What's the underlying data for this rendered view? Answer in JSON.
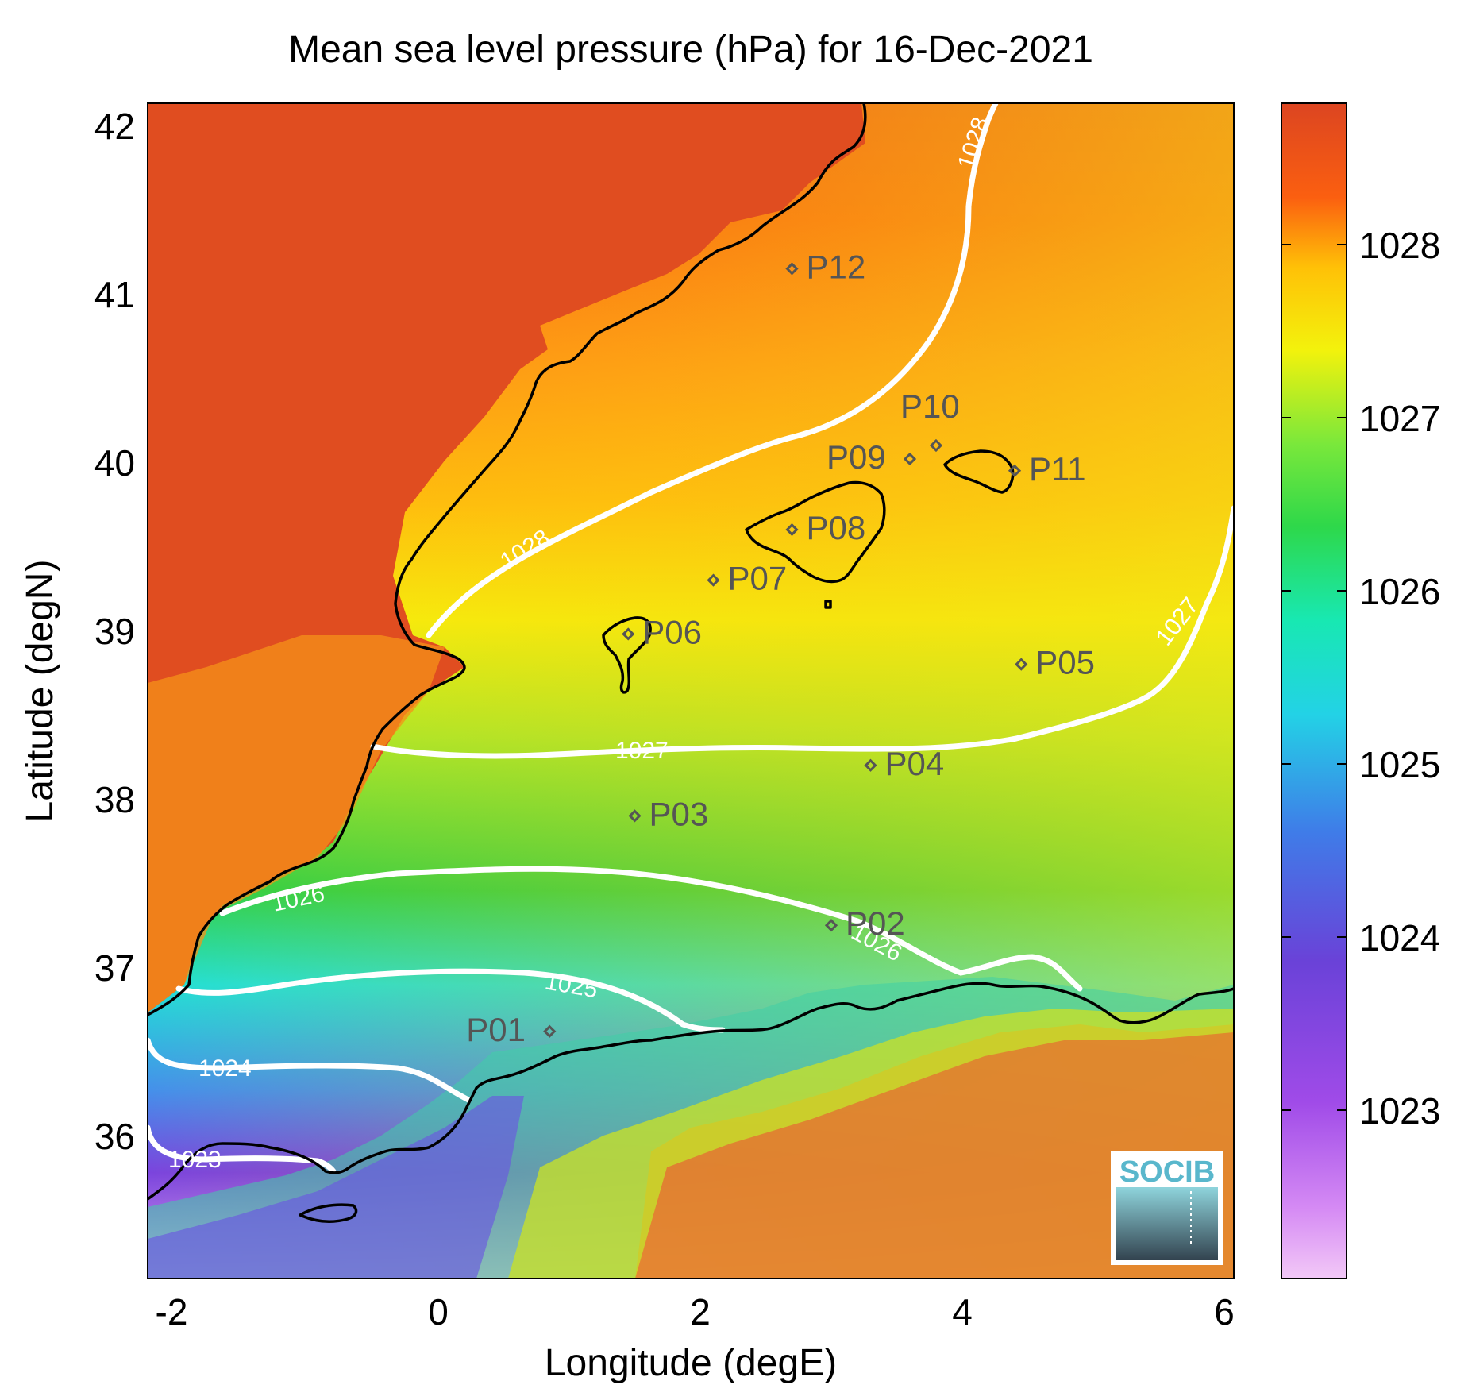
{
  "title": "Mean sea level pressure (hPa) for 16-Dec-2021",
  "xlabel": "Longitude (degE)",
  "ylabel": "Latitude (degN)",
  "xticks": [
    "-2",
    "0",
    "2",
    "4",
    "6"
  ],
  "yticks": [
    "36",
    "37",
    "38",
    "39",
    "40",
    "41",
    "42"
  ],
  "colorbar": {
    "ticks": [
      "1023",
      "1024",
      "1025",
      "1026",
      "1027",
      "1028"
    ],
    "range": [
      1022,
      1028.8
    ]
  },
  "contour_labels": [
    "1028",
    "1028",
    "1027",
    "1027",
    "1026",
    "1026",
    "1025",
    "1024",
    "1023"
  ],
  "stations": [
    {
      "id": "P01",
      "lon": 0.85,
      "lat": 36.52
    },
    {
      "id": "P02",
      "lon": 3.0,
      "lat": 37.15
    },
    {
      "id": "P03",
      "lon": 1.5,
      "lat": 37.8
    },
    {
      "id": "P04",
      "lon": 3.3,
      "lat": 38.1
    },
    {
      "id": "P05",
      "lon": 4.45,
      "lat": 38.7
    },
    {
      "id": "P06",
      "lon": 1.45,
      "lat": 38.88
    },
    {
      "id": "P07",
      "lon": 2.1,
      "lat": 39.2
    },
    {
      "id": "P08",
      "lon": 2.7,
      "lat": 39.5
    },
    {
      "id": "P09",
      "lon": 3.6,
      "lat": 39.92
    },
    {
      "id": "P10",
      "lon": 3.8,
      "lat": 40.0
    },
    {
      "id": "P11",
      "lon": 4.4,
      "lat": 39.85
    },
    {
      "id": "P12",
      "lon": 2.7,
      "lat": 41.05
    }
  ],
  "logo": "SOCIB",
  "colors": {
    "contour": "#ffffff",
    "coast": "#000000",
    "station": "#555555"
  }
}
